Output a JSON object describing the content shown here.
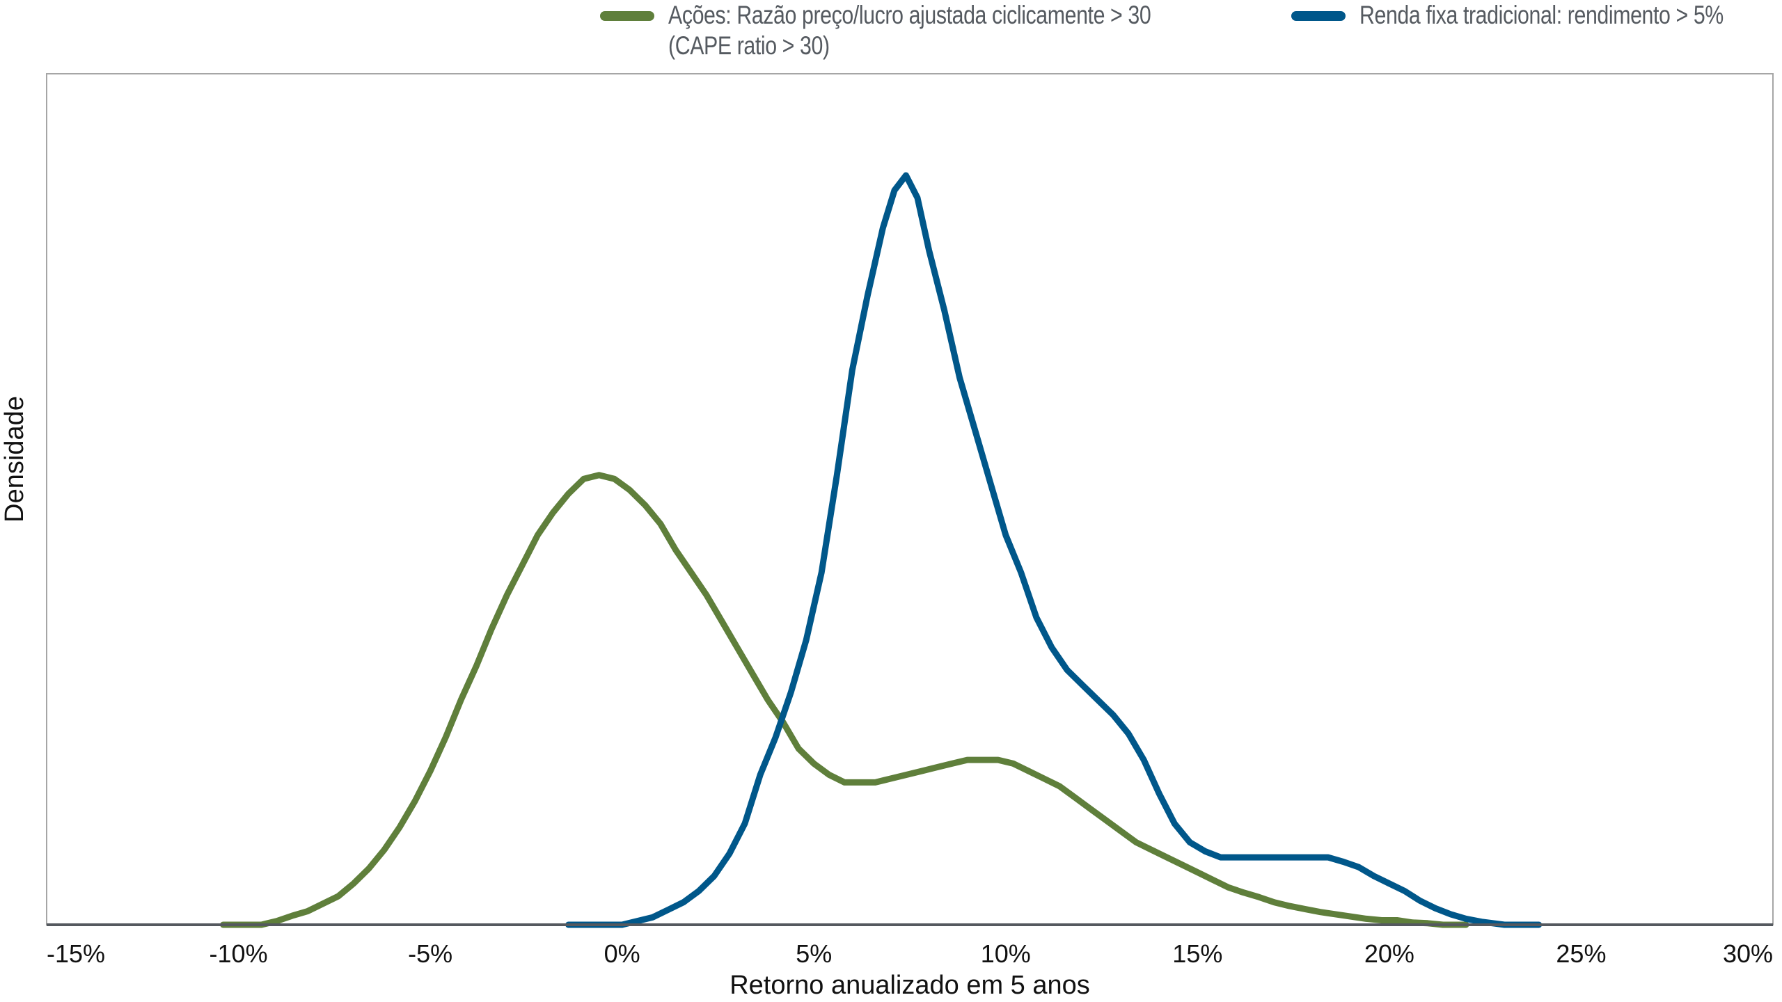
{
  "legend": {
    "items": [
      {
        "label_line1": "Ações: Razão preço/lucro ajustada ciclicamente > 30",
        "label_line2": "(CAPE ratio > 30)",
        "color": "#5F7F3B"
      },
      {
        "label_line1": "Renda fixa tradicional: rendimento > 5%",
        "label_line2": "",
        "color": "#00578A"
      }
    ]
  },
  "chart_data": {
    "type": "line",
    "title": "",
    "xlabel": "Retorno anualizado em 5 anos",
    "ylabel": "Densidade",
    "xlim": [
      -15,
      30
    ],
    "ylim": [
      0,
      1.1
    ],
    "x_ticks": [
      -15,
      -10,
      -5,
      0,
      5,
      10,
      15,
      20,
      25,
      30
    ],
    "x_tick_labels": [
      "-15%",
      "-10%",
      "-5%",
      "0%",
      "5%",
      "10%",
      "15%",
      "20%",
      "25%",
      "30%"
    ],
    "y_ticks": [],
    "grid": false,
    "legend_position": "top",
    "series": [
      {
        "name": "Ações: Razão preço/lucro ajustada ciclicamente > 30 (CAPE ratio > 30)",
        "color": "#5F7F3B",
        "x": [
          -10.4,
          -9.4,
          -9.0,
          -8.6,
          -8.2,
          -7.8,
          -7.4,
          -7.0,
          -6.6,
          -6.2,
          -5.8,
          -5.4,
          -5.0,
          -4.6,
          -4.2,
          -3.8,
          -3.4,
          -3.0,
          -2.6,
          -2.2,
          -1.8,
          -1.4,
          -1.0,
          -0.6,
          -0.2,
          0.2,
          0.6,
          1.0,
          1.4,
          1.8,
          2.2,
          2.6,
          3.0,
          3.4,
          3.8,
          4.2,
          4.6,
          5.0,
          5.4,
          5.8,
          6.2,
          6.6,
          7.0,
          7.4,
          7.8,
          8.2,
          8.6,
          9.0,
          9.4,
          9.8,
          10.2,
          10.6,
          11.0,
          11.4,
          11.8,
          12.2,
          12.6,
          13.0,
          13.4,
          13.8,
          14.2,
          14.6,
          15.0,
          15.4,
          15.8,
          16.2,
          16.6,
          17.0,
          17.4,
          17.8,
          18.2,
          18.6,
          19.0,
          19.4,
          19.8,
          20.2,
          20.6,
          21.0,
          21.4,
          22.0
        ],
        "y": [
          0.0,
          0.0,
          0.005,
          0.012,
          0.018,
          0.028,
          0.038,
          0.055,
          0.075,
          0.1,
          0.13,
          0.165,
          0.205,
          0.25,
          0.3,
          0.345,
          0.395,
          0.44,
          0.48,
          0.52,
          0.55,
          0.575,
          0.595,
          0.6,
          0.595,
          0.58,
          0.56,
          0.535,
          0.5,
          0.47,
          0.44,
          0.405,
          0.37,
          0.335,
          0.3,
          0.27,
          0.235,
          0.215,
          0.2,
          0.19,
          0.19,
          0.19,
          0.195,
          0.2,
          0.205,
          0.21,
          0.215,
          0.22,
          0.22,
          0.22,
          0.215,
          0.205,
          0.195,
          0.185,
          0.17,
          0.155,
          0.14,
          0.125,
          0.11,
          0.1,
          0.09,
          0.08,
          0.07,
          0.06,
          0.05,
          0.043,
          0.037,
          0.03,
          0.025,
          0.021,
          0.017,
          0.014,
          0.011,
          0.008,
          0.006,
          0.006,
          0.003,
          0.002,
          0.0,
          0.0
        ]
      },
      {
        "name": "Renda fixa tradicional: rendimento > 5%",
        "color": "#00578A",
        "x": [
          -1.4,
          0.0,
          0.4,
          0.8,
          1.2,
          1.6,
          2.0,
          2.4,
          2.8,
          3.2,
          3.6,
          4.0,
          4.4,
          4.8,
          5.2,
          5.6,
          6.0,
          6.4,
          6.8,
          7.1,
          7.4,
          7.7,
          8.0,
          8.4,
          8.8,
          9.2,
          9.6,
          10.0,
          10.4,
          10.8,
          11.2,
          11.6,
          12.0,
          12.4,
          12.8,
          13.2,
          13.6,
          14.0,
          14.4,
          14.8,
          15.2,
          15.6,
          16.0,
          16.4,
          16.8,
          17.2,
          17.6,
          18.0,
          18.4,
          18.8,
          19.2,
          19.6,
          20.0,
          20.4,
          20.8,
          21.2,
          21.6,
          22.0,
          22.4,
          23.0,
          23.9
        ],
        "y": [
          0.0,
          0.0,
          0.005,
          0.01,
          0.02,
          0.03,
          0.045,
          0.065,
          0.095,
          0.135,
          0.2,
          0.25,
          0.31,
          0.38,
          0.47,
          0.6,
          0.74,
          0.84,
          0.93,
          0.98,
          1.0,
          0.97,
          0.9,
          0.82,
          0.73,
          0.66,
          0.59,
          0.52,
          0.47,
          0.41,
          0.37,
          0.34,
          0.32,
          0.3,
          0.28,
          0.255,
          0.22,
          0.175,
          0.135,
          0.11,
          0.098,
          0.09,
          0.09,
          0.09,
          0.09,
          0.09,
          0.09,
          0.09,
          0.09,
          0.084,
          0.077,
          0.065,
          0.055,
          0.045,
          0.032,
          0.022,
          0.014,
          0.008,
          0.004,
          0.0,
          0.0
        ]
      }
    ]
  }
}
